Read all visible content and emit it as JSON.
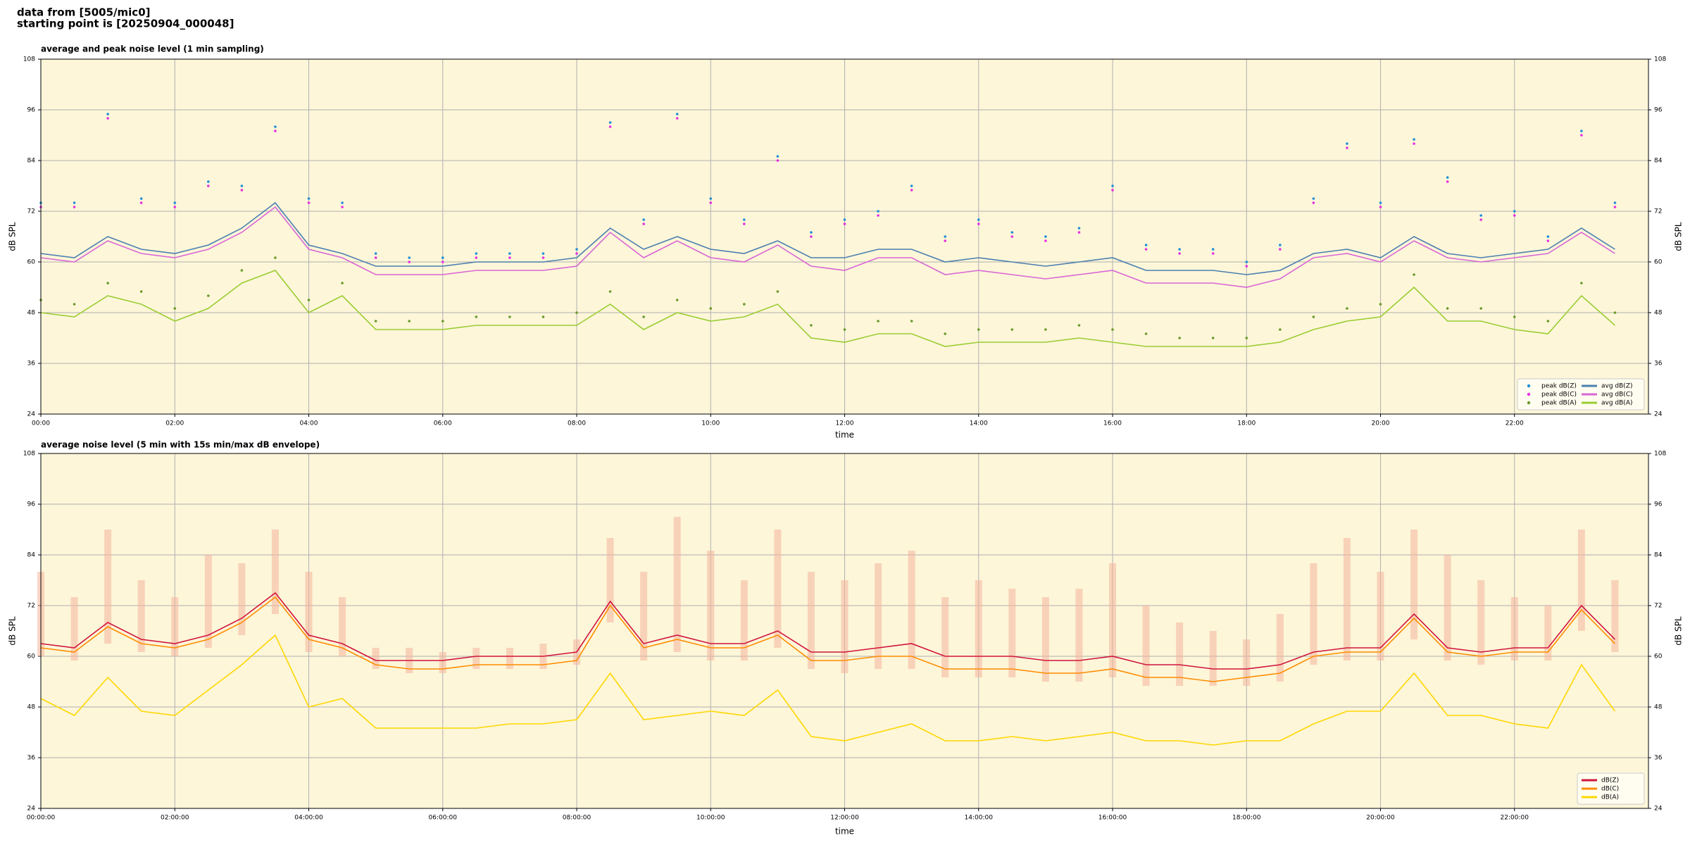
{
  "header": [
    "data from [5005/mic0]",
    "starting point is [20250904_000048]"
  ],
  "chart_data": [
    {
      "type": "line",
      "title": "average and peak noise level (1 min sampling)",
      "xlabel": "time",
      "ylabel": "dB SPL",
      "background": "#fdf6d9",
      "grid": true,
      "legend": "lower right",
      "legend_columns": 2,
      "xlim": [
        0,
        1440
      ],
      "xticks": [
        {
          "value": 0,
          "label": "00:00"
        },
        {
          "value": 120,
          "label": "02:00"
        },
        {
          "value": 240,
          "label": "04:00"
        },
        {
          "value": 360,
          "label": "06:00"
        },
        {
          "value": 480,
          "label": "08:00"
        },
        {
          "value": 600,
          "label": "10:00"
        },
        {
          "value": 720,
          "label": "12:00"
        },
        {
          "value": 840,
          "label": "14:00"
        },
        {
          "value": 960,
          "label": "16:00"
        },
        {
          "value": 1080,
          "label": "18:00"
        },
        {
          "value": 1200,
          "label": "20:00"
        },
        {
          "value": 1320,
          "label": "22:00"
        }
      ],
      "ylim": [
        24,
        108
      ],
      "yticks": [
        24,
        36,
        48,
        60,
        72,
        84,
        96,
        108
      ],
      "x": [
        0,
        30,
        60,
        90,
        120,
        150,
        180,
        210,
        240,
        270,
        300,
        330,
        360,
        390,
        420,
        450,
        480,
        510,
        540,
        570,
        600,
        630,
        660,
        690,
        720,
        750,
        780,
        810,
        840,
        870,
        900,
        930,
        960,
        990,
        1020,
        1050,
        1080,
        1110,
        1140,
        1170,
        1200,
        1230,
        1260,
        1290,
        1320,
        1350,
        1380,
        1410
      ],
      "series": [
        {
          "name": "peak dB(Z)",
          "color": "#1f8fd6",
          "style": "scatter",
          "values": [
            74,
            74,
            95,
            75,
            74,
            79,
            78,
            92,
            75,
            74,
            62,
            61,
            61,
            62,
            62,
            62,
            63,
            93,
            70,
            95,
            75,
            70,
            85,
            67,
            70,
            72,
            78,
            66,
            70,
            67,
            66,
            68,
            78,
            64,
            63,
            63,
            60,
            64,
            75,
            88,
            74,
            89,
            80,
            71,
            72,
            66,
            91,
            74
          ]
        },
        {
          "name": "peak dB(C)",
          "color": "#e62ee0",
          "style": "scatter",
          "values": [
            73,
            73,
            94,
            74,
            73,
            78,
            77,
            91,
            74,
            73,
            61,
            60,
            60,
            61,
            61,
            61,
            62,
            92,
            69,
            94,
            74,
            69,
            84,
            66,
            69,
            71,
            77,
            65,
            69,
            66,
            65,
            67,
            77,
            63,
            62,
            62,
            59,
            63,
            74,
            87,
            73,
            88,
            79,
            70,
            71,
            65,
            90,
            73
          ]
        },
        {
          "name": "peak dB(A)",
          "color": "#6a9a2a",
          "style": "scatter",
          "values": [
            51,
            50,
            55,
            53,
            49,
            52,
            58,
            61,
            51,
            55,
            46,
            46,
            46,
            47,
            47,
            47,
            48,
            53,
            47,
            51,
            49,
            50,
            53,
            45,
            44,
            46,
            46,
            43,
            44,
            44,
            44,
            45,
            44,
            43,
            42,
            42,
            42,
            44,
            47,
            49,
            50,
            57,
            49,
            49,
            47,
            46,
            55,
            48
          ]
        },
        {
          "name": "avg dB(Z)",
          "color": "#4a7fb0",
          "style": "line",
          "values": [
            62,
            61,
            66,
            63,
            62,
            64,
            68,
            74,
            64,
            62,
            59,
            59,
            59,
            60,
            60,
            60,
            61,
            68,
            63,
            66,
            63,
            62,
            65,
            61,
            61,
            63,
            63,
            60,
            61,
            60,
            59,
            60,
            61,
            58,
            58,
            58,
            57,
            58,
            62,
            63,
            61,
            66,
            62,
            61,
            62,
            63,
            68,
            63
          ]
        },
        {
          "name": "avg dB(C)",
          "color": "#d966d6",
          "style": "line",
          "values": [
            61,
            60,
            65,
            62,
            61,
            63,
            67,
            73,
            63,
            61,
            57,
            57,
            57,
            58,
            58,
            58,
            59,
            67,
            61,
            65,
            61,
            60,
            64,
            59,
            58,
            61,
            61,
            57,
            58,
            57,
            56,
            57,
            58,
            55,
            55,
            55,
            54,
            56,
            61,
            62,
            60,
            65,
            61,
            60,
            61,
            62,
            67,
            62
          ]
        },
        {
          "name": "avg dB(A)",
          "color": "#9acd32",
          "style": "line",
          "values": [
            48,
            47,
            52,
            50,
            46,
            49,
            55,
            58,
            48,
            52,
            44,
            44,
            44,
            45,
            45,
            45,
            45,
            50,
            44,
            48,
            46,
            47,
            50,
            42,
            41,
            43,
            43,
            40,
            41,
            41,
            41,
            42,
            41,
            40,
            40,
            40,
            40,
            41,
            44,
            46,
            47,
            54,
            46,
            46,
            44,
            43,
            52,
            45
          ]
        }
      ]
    },
    {
      "type": "line",
      "title": "average noise level (5 min with 15s min/max dB envelope)",
      "xlabel": "time",
      "ylabel": "dB SPL",
      "background": "#fdf6d9",
      "grid": true,
      "legend": "lower right",
      "legend_columns": 1,
      "xlim": [
        0,
        1440
      ],
      "xticks": [
        {
          "value": 0,
          "label": "00:00:00"
        },
        {
          "value": 120,
          "label": "02:00:00"
        },
        {
          "value": 240,
          "label": "04:00:00"
        },
        {
          "value": 360,
          "label": "06:00:00"
        },
        {
          "value": 480,
          "label": "08:00:00"
        },
        {
          "value": 600,
          "label": "10:00:00"
        },
        {
          "value": 720,
          "label": "12:00:00"
        },
        {
          "value": 840,
          "label": "14:00:00"
        },
        {
          "value": 960,
          "label": "16:00:00"
        },
        {
          "value": 1080,
          "label": "18:00:00"
        },
        {
          "value": 1200,
          "label": "20:00:00"
        },
        {
          "value": 1320,
          "label": "22:00:00"
        }
      ],
      "ylim": [
        24,
        108
      ],
      "yticks": [
        24,
        36,
        48,
        60,
        72,
        84,
        96,
        108
      ],
      "x": [
        0,
        30,
        60,
        90,
        120,
        150,
        180,
        210,
        240,
        270,
        300,
        330,
        360,
        390,
        420,
        450,
        480,
        510,
        540,
        570,
        600,
        630,
        660,
        690,
        720,
        750,
        780,
        810,
        840,
        870,
        900,
        930,
        960,
        990,
        1020,
        1050,
        1080,
        1110,
        1140,
        1170,
        1200,
        1230,
        1260,
        1290,
        1320,
        1350,
        1380,
        1410
      ],
      "envelope": {
        "color": "#f4b49c",
        "low": [
          60,
          59,
          63,
          61,
          60,
          62,
          65,
          70,
          61,
          60,
          57,
          56,
          56,
          57,
          57,
          57,
          58,
          68,
          59,
          61,
          59,
          59,
          62,
          57,
          56,
          57,
          57,
          55,
          55,
          55,
          54,
          54,
          55,
          53,
          53,
          53,
          53,
          54,
          58,
          59,
          59,
          64,
          59,
          58,
          59,
          59,
          66,
          61
        ],
        "high": [
          80,
          74,
          90,
          78,
          74,
          84,
          82,
          90,
          80,
          74,
          62,
          62,
          61,
          62,
          62,
          63,
          64,
          88,
          80,
          93,
          85,
          78,
          90,
          80,
          78,
          82,
          85,
          74,
          78,
          76,
          74,
          76,
          82,
          72,
          68,
          66,
          64,
          70,
          82,
          88,
          80,
          90,
          84,
          78,
          74,
          72,
          90,
          78
        ]
      },
      "series": [
        {
          "name": "dB(Z)",
          "color": "#d0143c",
          "style": "line",
          "values": [
            63,
            62,
            68,
            64,
            63,
            65,
            69,
            75,
            65,
            63,
            59,
            59,
            59,
            60,
            60,
            60,
            61,
            73,
            63,
            65,
            63,
            63,
            66,
            61,
            61,
            62,
            63,
            60,
            60,
            60,
            59,
            59,
            60,
            58,
            58,
            57,
            57,
            58,
            61,
            62,
            62,
            70,
            62,
            61,
            62,
            62,
            72,
            64
          ]
        },
        {
          "name": "dB(C)",
          "color": "#ff8c00",
          "style": "line",
          "values": [
            62,
            61,
            67,
            63,
            62,
            64,
            68,
            74,
            64,
            62,
            58,
            57,
            57,
            58,
            58,
            58,
            59,
            72,
            62,
            64,
            62,
            62,
            65,
            59,
            59,
            60,
            60,
            57,
            57,
            57,
            56,
            56,
            57,
            55,
            55,
            54,
            55,
            56,
            60,
            61,
            61,
            69,
            61,
            60,
            61,
            61,
            71,
            63
          ]
        },
        {
          "name": "dB(A)",
          "color": "#ffd700",
          "style": "line",
          "values": [
            50,
            46,
            55,
            47,
            46,
            52,
            58,
            65,
            48,
            50,
            43,
            43,
            43,
            43,
            44,
            44,
            45,
            56,
            45,
            46,
            47,
            46,
            52,
            41,
            40,
            42,
            44,
            40,
            40,
            41,
            40,
            41,
            42,
            40,
            40,
            39,
            40,
            40,
            44,
            47,
            47,
            56,
            46,
            46,
            44,
            43,
            58,
            47
          ]
        }
      ]
    }
  ]
}
